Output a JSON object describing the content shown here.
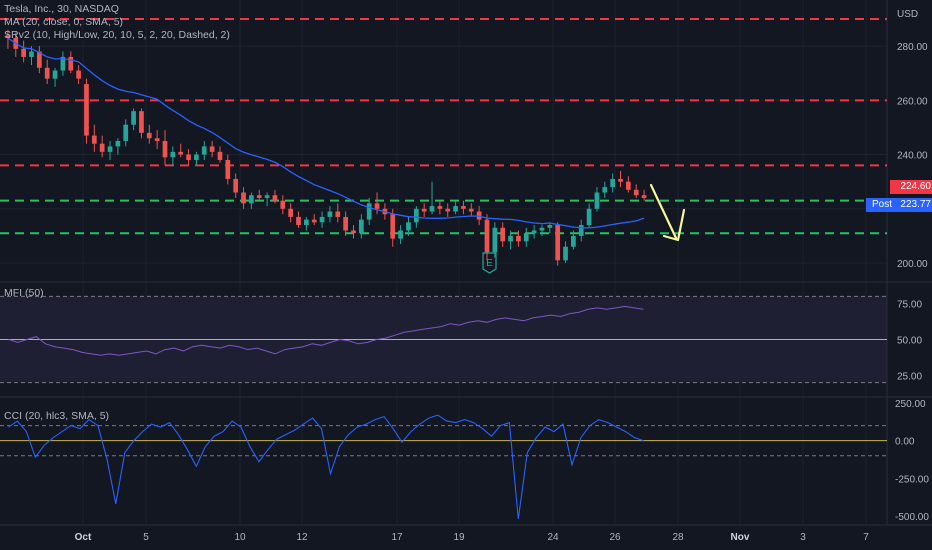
{
  "symbol_title": "Tesla, Inc., 30, NASDAQ",
  "ma_label": "MA (20, close, 0, SMA, 5)",
  "srv_label": "SRv2 (10, High/Low, 20, 10, 5, 2, 20, Dashed, 2)",
  "mfi_label": "MFI (50)",
  "cci_label": "CCI (20, hlc3, SMA, 5)",
  "currency": "USD",
  "last_price": "224.60",
  "post_label": "Post",
  "post_price": "223.77",
  "earnings_marker": "E",
  "colors": {
    "background": "#131722",
    "up": "#26a69a",
    "down": "#ef5350",
    "ma": "#2962ff",
    "resistance": "#f23645",
    "support": "#22c55e",
    "arrow": "#f7f79a",
    "mfi_band": "#2a2642",
    "cci_line": "#2962ff"
  },
  "x_axis": [
    "Oct",
    "5",
    "10",
    "12",
    "17",
    "19",
    "24",
    "26",
    "28",
    "Nov",
    "3",
    "7"
  ],
  "price_axis": [
    "280.00",
    "260.00",
    "240.00",
    "200.00"
  ],
  "mfi_axis": [
    "75.00",
    "50.00",
    "25.00"
  ],
  "cci_axis": [
    "250.00",
    "0.00",
    "-250.00",
    "-500.00"
  ],
  "chart_data": [
    {
      "type": "candlestick",
      "title": "Tesla, Inc., 30, NASDAQ",
      "ylabel": "USD",
      "ylim": [
        193,
        297
      ],
      "ma_period": 20,
      "resistance_levels": [
        290,
        260,
        236
      ],
      "support_levels": [
        223,
        211
      ],
      "last": 224.6,
      "post": 223.77,
      "ohlc": [
        [
          284,
          286,
          279,
          283
        ],
        [
          283,
          285,
          276,
          279
        ],
        [
          279,
          282,
          274,
          276
        ],
        [
          276,
          280,
          273,
          278
        ],
        [
          278,
          280,
          270,
          272
        ],
        [
          272,
          275,
          266,
          268
        ],
        [
          268,
          272,
          265,
          271
        ],
        [
          271,
          278,
          269,
          276
        ],
        [
          276,
          278,
          270,
          271
        ],
        [
          271,
          273,
          266,
          268
        ],
        [
          266,
          268,
          244,
          247
        ],
        [
          247,
          251,
          241,
          244
        ],
        [
          244,
          247,
          239,
          241
        ],
        [
          241,
          245,
          238,
          243
        ],
        [
          243,
          246,
          240,
          245
        ],
        [
          245,
          253,
          243,
          251
        ],
        [
          251,
          257,
          249,
          256
        ],
        [
          256,
          257,
          246,
          248
        ],
        [
          248,
          251,
          244,
          246
        ],
        [
          246,
          249,
          242,
          245
        ],
        [
          245,
          249,
          236,
          239
        ],
        [
          239,
          243,
          236,
          241
        ],
        [
          241,
          244,
          239,
          240
        ],
        [
          240,
          242,
          236,
          238
        ],
        [
          238,
          241,
          236,
          240
        ],
        [
          240,
          245,
          238,
          243
        ],
        [
          243,
          245,
          239,
          241
        ],
        [
          241,
          243,
          237,
          238
        ],
        [
          238,
          240,
          229,
          231
        ],
        [
          231,
          233,
          224,
          226
        ],
        [
          226,
          228,
          220,
          222
        ],
        [
          222,
          226,
          220,
          225
        ],
        [
          225,
          227,
          223,
          224
        ],
        [
          224,
          226,
          221,
          225
        ],
        [
          225,
          227,
          222,
          223
        ],
        [
          223,
          225,
          218,
          220
        ],
        [
          220,
          222,
          215,
          217
        ],
        [
          217,
          219,
          213,
          214
        ],
        [
          214,
          217,
          212,
          216
        ],
        [
          216,
          218,
          214,
          215
        ],
        [
          215,
          219,
          213,
          217
        ],
        [
          217,
          221,
          215,
          219
        ],
        [
          219,
          222,
          215,
          217
        ],
        [
          217,
          219,
          210,
          212
        ],
        [
          212,
          214,
          209,
          211
        ],
        [
          211,
          218,
          209,
          216
        ],
        [
          216,
          224,
          214,
          222
        ],
        [
          222,
          226,
          218,
          220
        ],
        [
          220,
          222,
          216,
          218
        ],
        [
          218,
          220,
          206,
          209
        ],
        [
          209,
          214,
          207,
          212
        ],
        [
          212,
          217,
          210,
          215
        ],
        [
          215,
          221,
          213,
          220
        ],
        [
          220,
          222,
          217,
          219
        ],
        [
          219,
          230,
          218,
          221
        ],
        [
          221,
          223,
          218,
          220
        ],
        [
          220,
          222,
          217,
          219
        ],
        [
          219,
          223,
          218,
          221
        ],
        [
          221,
          223,
          218,
          220
        ],
        [
          220,
          222,
          217,
          219
        ],
        [
          219,
          221,
          214,
          216
        ],
        [
          216,
          218,
          201,
          204
        ],
        [
          204,
          215,
          202,
          213
        ],
        [
          213,
          215,
          206,
          208
        ],
        [
          208,
          212,
          205,
          210
        ],
        [
          210,
          212,
          206,
          208
        ],
        [
          208,
          213,
          206,
          211
        ],
        [
          211,
          214,
          209,
          212
        ],
        [
          212,
          214,
          210,
          213
        ],
        [
          213,
          215,
          211,
          214
        ],
        [
          214,
          215,
          199,
          201
        ],
        [
          201,
          208,
          200,
          206
        ],
        [
          206,
          212,
          205,
          210
        ],
        [
          210,
          216,
          208,
          214
        ],
        [
          214,
          222,
          213,
          220
        ],
        [
          220,
          228,
          219,
          226
        ],
        [
          226,
          230,
          224,
          228
        ],
        [
          228,
          233,
          226,
          231
        ],
        [
          231,
          234,
          228,
          230
        ],
        [
          230,
          232,
          226,
          227
        ],
        [
          227,
          229,
          224,
          225
        ],
        [
          225,
          227,
          223,
          224
        ]
      ]
    },
    {
      "type": "line",
      "title": "MFI (50)",
      "ylim": [
        10,
        90
      ],
      "levels": [
        80,
        50,
        20
      ],
      "values": [
        50,
        48,
        50,
        52,
        47,
        45,
        44,
        43,
        41,
        40,
        39,
        40,
        39,
        40,
        41,
        42,
        40,
        43,
        44,
        42,
        45,
        46,
        45,
        44,
        46,
        45,
        43,
        44,
        42,
        40,
        43,
        44,
        45,
        47,
        46,
        48,
        50,
        49,
        47,
        48,
        50,
        51,
        53,
        55,
        56,
        57,
        58,
        59,
        61,
        60,
        62,
        63,
        62,
        64,
        65,
        64,
        63,
        65,
        66,
        67,
        66,
        68,
        69,
        71,
        72,
        71,
        72,
        73,
        72,
        71
      ]
    },
    {
      "type": "line",
      "title": "CCI (20, hlc3, SMA, 5)",
      "ylim": [
        -560,
        290
      ],
      "levels": [
        100,
        0,
        -100
      ],
      "values": [
        90,
        130,
        60,
        -110,
        -30,
        20,
        60,
        100,
        80,
        140,
        100,
        -120,
        -420,
        -80,
        0,
        60,
        110,
        90,
        120,
        40,
        -60,
        -170,
        -40,
        30,
        60,
        130,
        90,
        -40,
        -140,
        -60,
        10,
        40,
        70,
        110,
        150,
        80,
        -220,
        -40,
        40,
        90,
        110,
        140,
        160,
        80,
        -10,
        60,
        110,
        150,
        170,
        130,
        120,
        140,
        120,
        80,
        30,
        100,
        120,
        -520,
        -80,
        20,
        90,
        60,
        110,
        -160,
        20,
        100,
        140,
        120,
        90,
        60,
        20,
        0
      ]
    }
  ]
}
